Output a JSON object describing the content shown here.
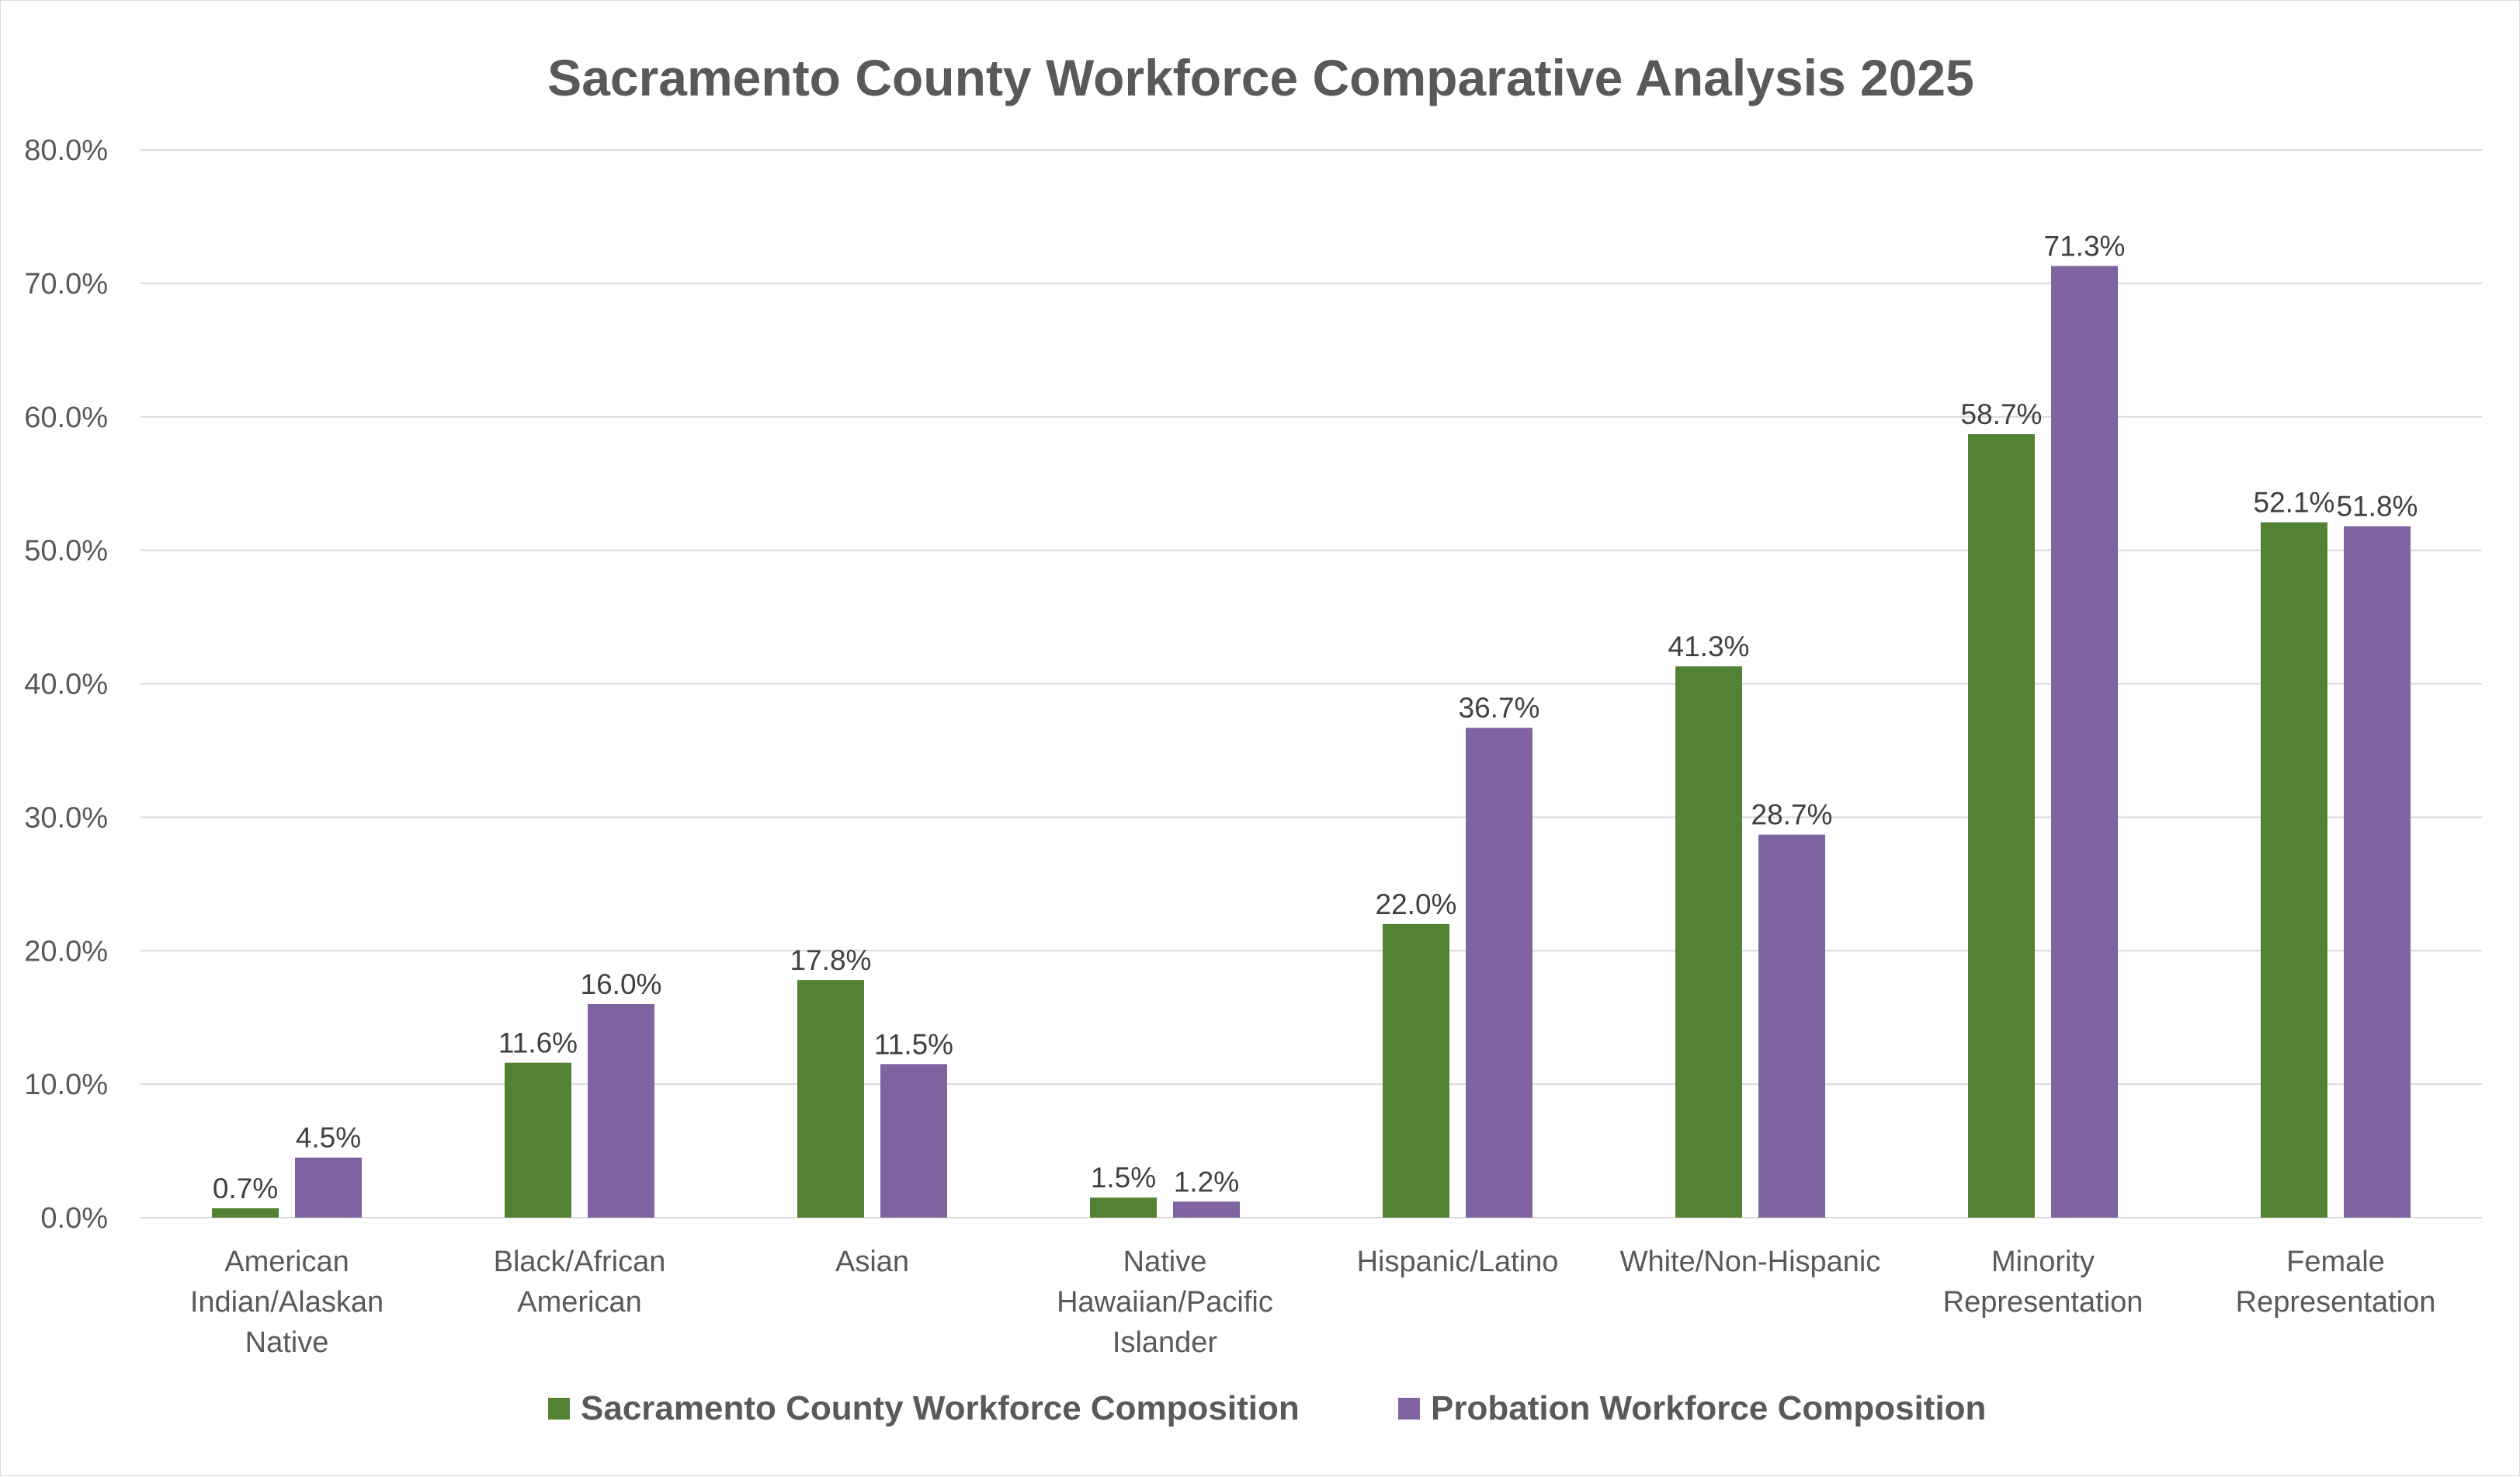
{
  "chart_data": {
    "type": "bar",
    "title": "Sacramento County Workforce Comparative Analysis 2025",
    "categories": [
      [
        "American",
        "Indian/Alaskan",
        "Native"
      ],
      [
        "Black/African",
        "American"
      ],
      [
        "Asian"
      ],
      [
        "Native",
        "Hawaiian/Pacific",
        "Islander"
      ],
      [
        "Hispanic/Latino"
      ],
      [
        "White/Non-Hispanic"
      ],
      [
        "Minority",
        "Representation"
      ],
      [
        "Female",
        "Representation"
      ]
    ],
    "series": [
      {
        "name": "Sacramento County Workforce Composition",
        "color": "#548235",
        "values": [
          0.7,
          11.6,
          17.8,
          1.5,
          22.0,
          41.3,
          58.7,
          52.1
        ]
      },
      {
        "name": "Probation Workforce Composition",
        "color": "#8064a2",
        "values": [
          4.5,
          16.0,
          11.5,
          1.2,
          36.7,
          28.7,
          71.3,
          51.8
        ]
      }
    ],
    "ylim": [
      0,
      80
    ],
    "yticks": [
      0,
      10,
      20,
      30,
      40,
      50,
      60,
      70,
      80
    ],
    "value_format": "percent_1dp",
    "grid": true,
    "legend_position": "bottom"
  }
}
